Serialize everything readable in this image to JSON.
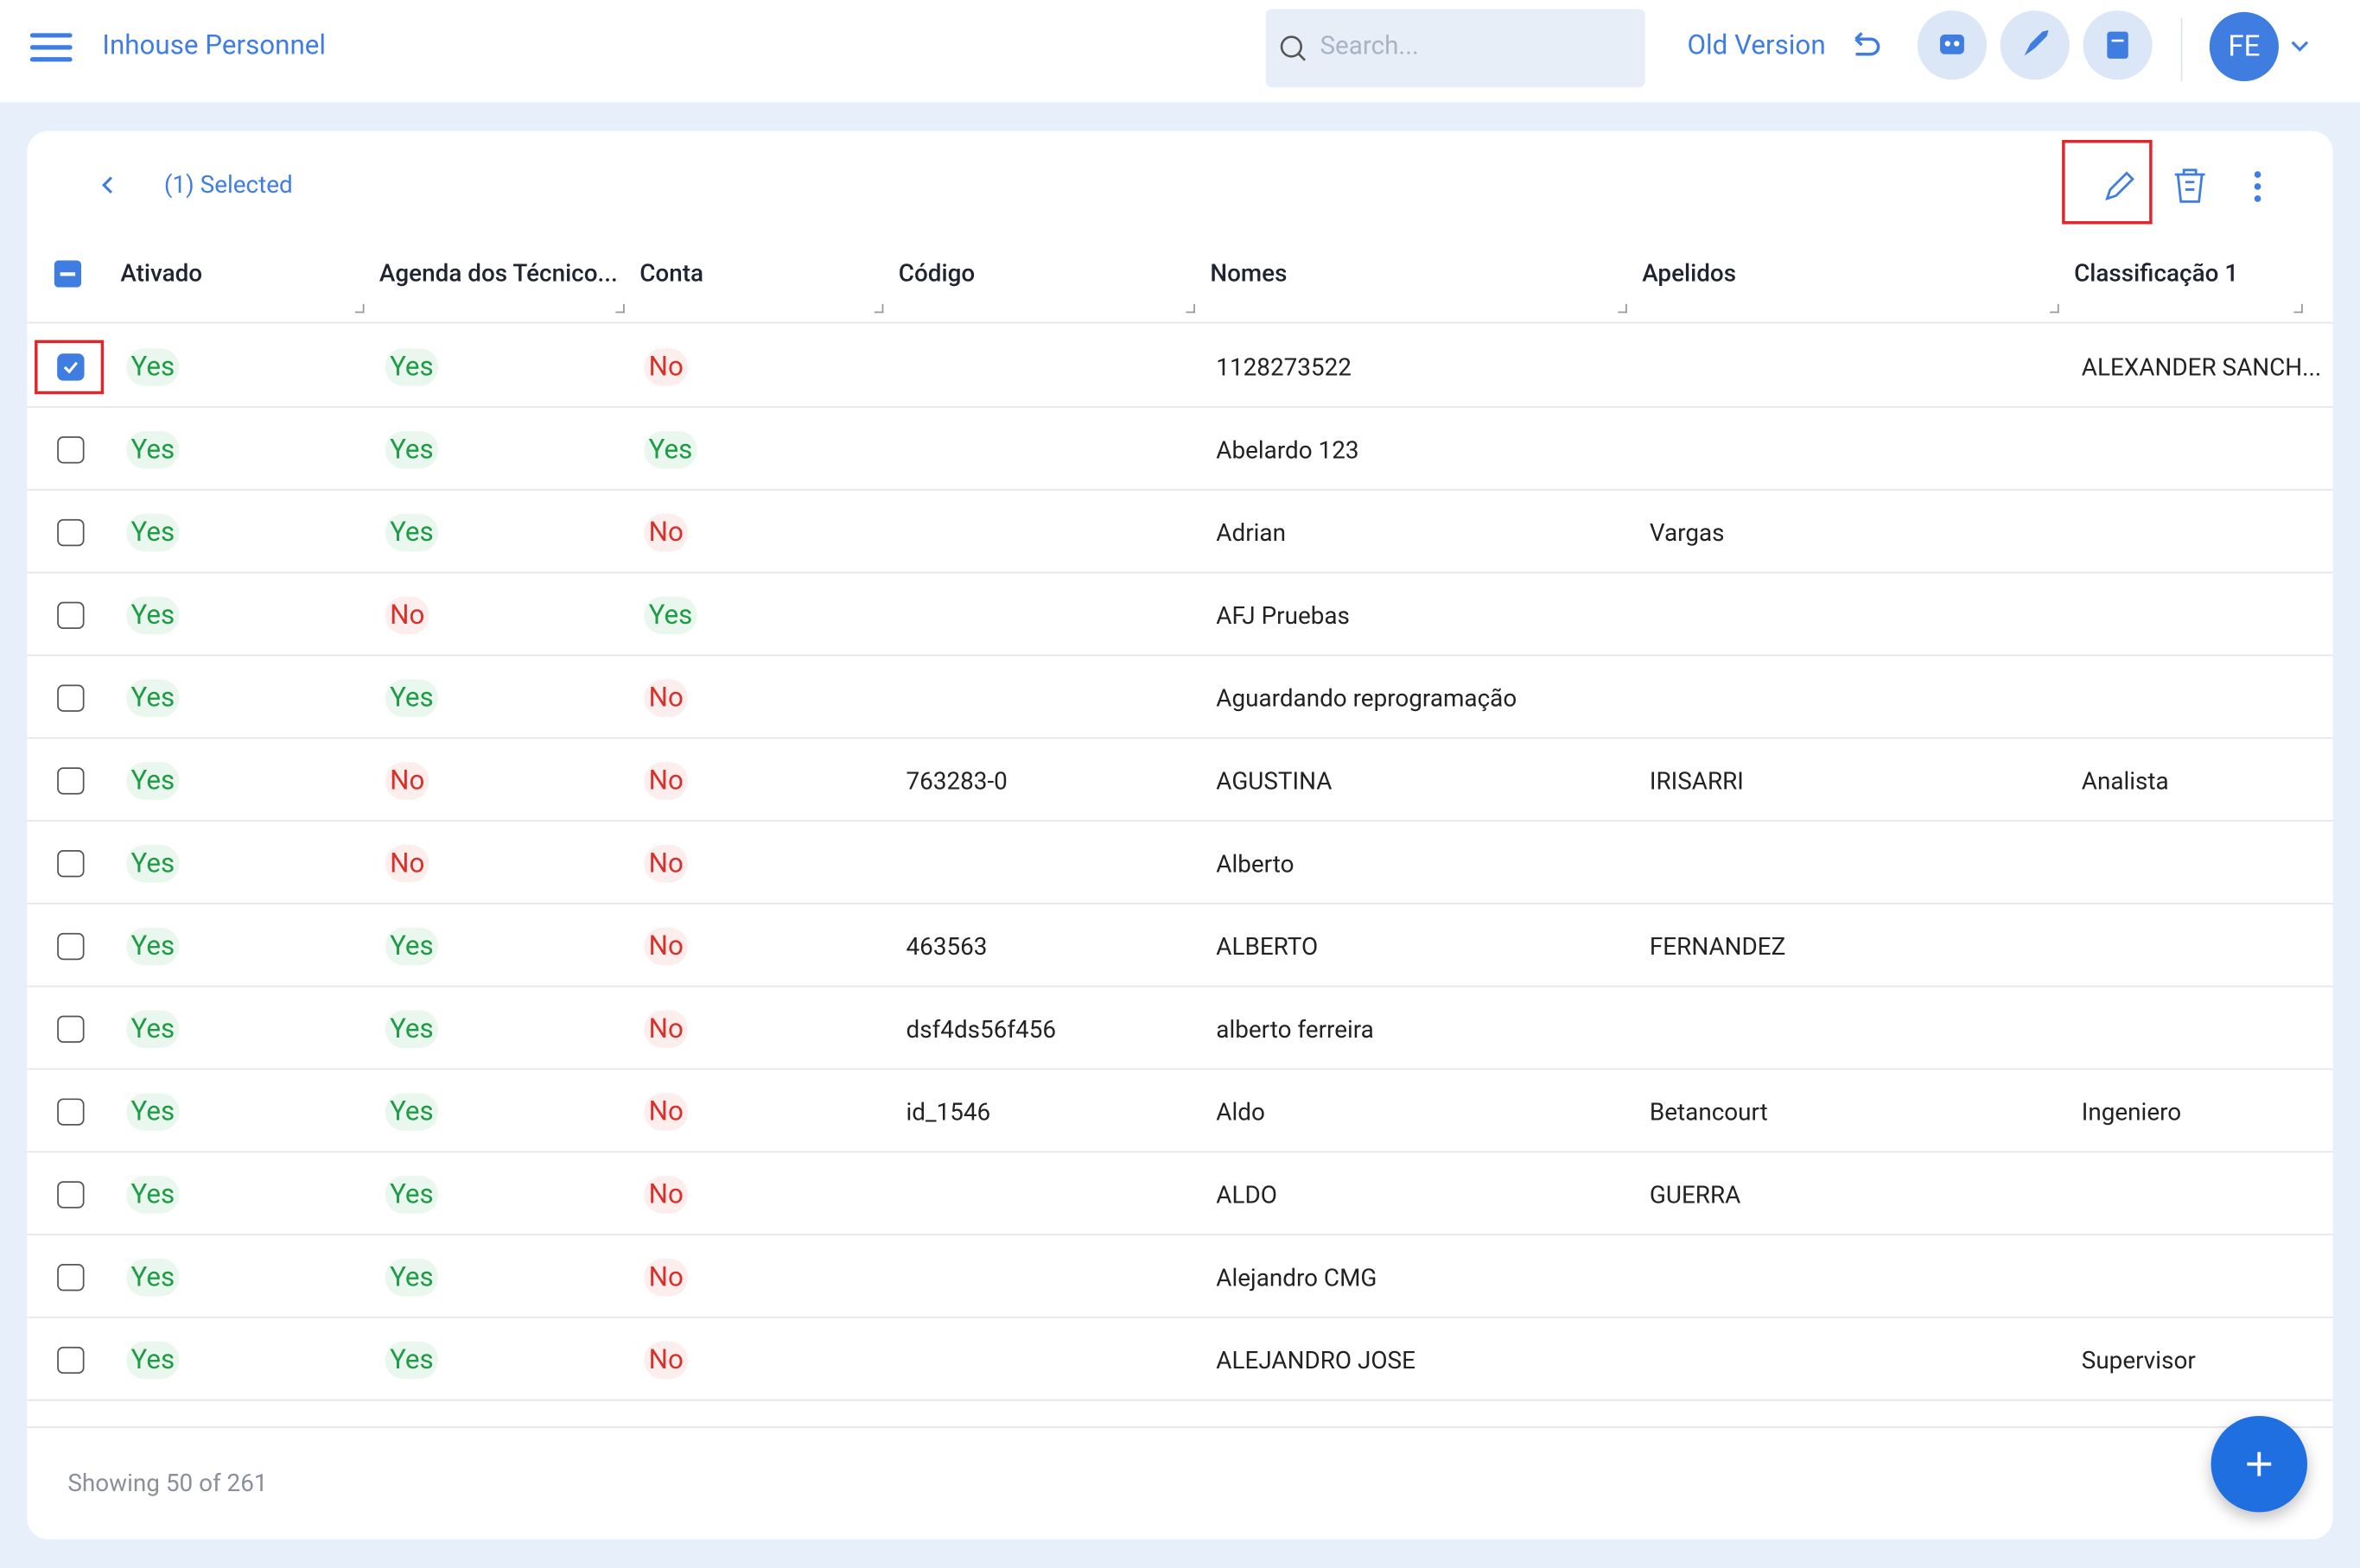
{
  "header": {
    "title": "Inhouse Personnel",
    "search_placeholder": "Search...",
    "old_version": "Old Version",
    "avatar": "FE"
  },
  "toolbar": {
    "selected": "(1) Selected"
  },
  "table": {
    "columns": [
      "Ativado",
      "Agenda dos Técnico...",
      "Conta",
      "Código",
      "Nomes",
      "Apelidos",
      "Classificação 1"
    ],
    "rows": [
      {
        "checked": true,
        "cells": [
          "Yes",
          "Yes",
          "No",
          null,
          "1128273522",
          null,
          "ALEXANDER SANCH..."
        ]
      },
      {
        "checked": false,
        "cells": [
          "Yes",
          "Yes",
          "Yes",
          null,
          "Abelardo 123",
          null,
          null
        ]
      },
      {
        "checked": false,
        "cells": [
          "Yes",
          "Yes",
          "No",
          null,
          "Adrian",
          "Vargas",
          null
        ]
      },
      {
        "checked": false,
        "cells": [
          "Yes",
          "No",
          "Yes",
          null,
          "AFJ Pruebas",
          null,
          null
        ]
      },
      {
        "checked": false,
        "cells": [
          "Yes",
          "Yes",
          "No",
          null,
          "Aguardando reprogramação",
          null,
          null
        ]
      },
      {
        "checked": false,
        "cells": [
          "Yes",
          "No",
          "No",
          "763283-0",
          "AGUSTINA",
          "IRISARRI",
          "Analista"
        ]
      },
      {
        "checked": false,
        "cells": [
          "Yes",
          "No",
          "No",
          null,
          "Alberto",
          null,
          null
        ]
      },
      {
        "checked": false,
        "cells": [
          "Yes",
          "Yes",
          "No",
          "463563",
          "ALBERTO",
          "FERNANDEZ",
          null
        ]
      },
      {
        "checked": false,
        "cells": [
          "Yes",
          "Yes",
          "No",
          "dsf4ds56f456",
          "alberto ferreira",
          null,
          null
        ]
      },
      {
        "checked": false,
        "cells": [
          "Yes",
          "Yes",
          "No",
          "id_1546",
          "Aldo",
          "Betancourt",
          "Ingeniero"
        ]
      },
      {
        "checked": false,
        "cells": [
          "Yes",
          "Yes",
          "No",
          null,
          "ALDO",
          "GUERRA",
          null
        ]
      },
      {
        "checked": false,
        "cells": [
          "Yes",
          "Yes",
          "No",
          null,
          "Alejandro CMG",
          null,
          null
        ]
      },
      {
        "checked": false,
        "cells": [
          "Yes",
          "Yes",
          "No",
          null,
          "ALEJANDRO JOSE",
          null,
          "Supervisor"
        ]
      }
    ]
  },
  "footer": {
    "showing": "Showing 50 of 261"
  }
}
